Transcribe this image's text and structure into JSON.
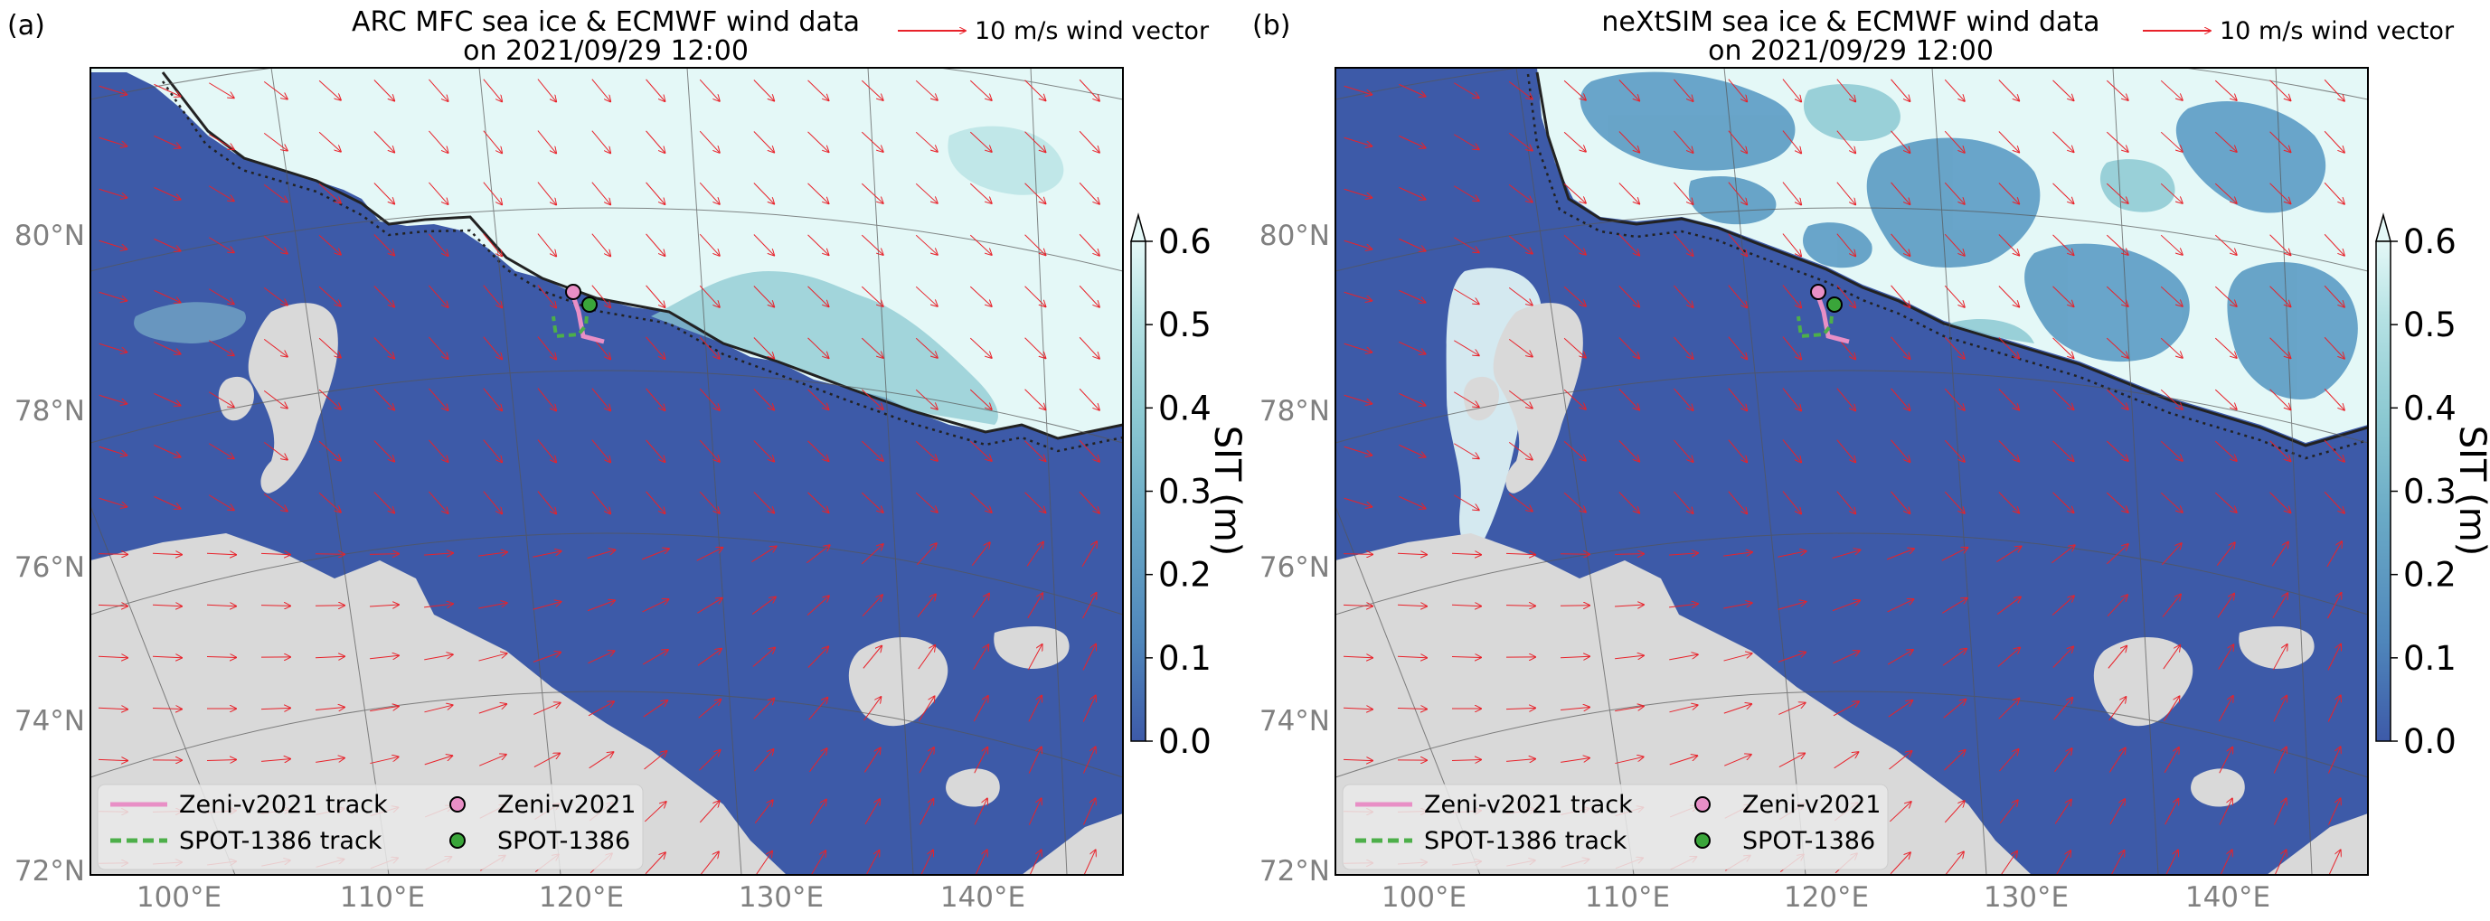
{
  "figure": {
    "panels": [
      {
        "letter": "(a)",
        "title_line1": "ARC MFC sea ice & ECMWF wind data",
        "title_line2": "on 2021/09/29 12:00",
        "wind_key": "10 m/s wind vector"
      },
      {
        "letter": "(b)",
        "title_line1": "neXtSIM sea ice & ECMWF wind data",
        "title_line2": "on 2021/09/29 12:00",
        "wind_key": "10 m/s wind vector"
      }
    ],
    "lat_labels": [
      "80°N",
      "78°N",
      "76°N",
      "74°N",
      "72°N"
    ],
    "lon_labels": [
      "100°E",
      "110°E",
      "120°E",
      "130°E",
      "140°E"
    ],
    "colorbar": {
      "label": "SIT (m)",
      "ticks": [
        "0.0",
        "0.1",
        "0.2",
        "0.3",
        "0.4",
        "0.5",
        "0.6"
      ],
      "min": 0.0,
      "max": 0.6,
      "colors": [
        "#3d5aa8",
        "#4f86bb",
        "#6aaac6",
        "#8cc9d2",
        "#b6e2e4",
        "#e4f8f7"
      ]
    },
    "legend": [
      {
        "label": "Zeni-v2021 track",
        "kind": "line",
        "color": "#e88fc6"
      },
      {
        "label": "SPOT-1386 track",
        "kind": "dashed",
        "color": "#4daf4a"
      },
      {
        "label": "Zeni-v2021",
        "kind": "marker",
        "color": "#e88fc6"
      },
      {
        "label": "SPOT-1386",
        "kind": "marker",
        "color": "#3aa53a"
      }
    ],
    "colors": {
      "ocean": "#3d5aa8",
      "land": "#d9d9d9",
      "ice_high": "#e4f8f7",
      "wind": "#e8222a",
      "grid": "#555555",
      "tick_label": "#808080"
    }
  },
  "chart_data": [
    {
      "type": "heatmap",
      "title": "ARC MFC sea ice & ECMWF wind data on 2021/09/29 12:00",
      "variable": "SIT (m)",
      "vmin": 0.0,
      "vmax": 0.6,
      "lat_ticks": [
        80,
        78,
        76,
        74,
        72
      ],
      "lon_ticks": [
        100,
        110,
        120,
        130,
        140
      ],
      "wind_reference": "10 m/s wind vector",
      "buoys": [
        "Zeni-v2021",
        "SPOT-1386"
      ]
    },
    {
      "type": "heatmap",
      "title": "neXtSIM sea ice & ECMWF wind data on 2021/09/29 12:00",
      "variable": "SIT (m)",
      "vmin": 0.0,
      "vmax": 0.6,
      "lat_ticks": [
        80,
        78,
        76,
        74,
        72
      ],
      "lon_ticks": [
        100,
        110,
        120,
        130,
        140
      ],
      "wind_reference": "10 m/s wind vector",
      "buoys": [
        "Zeni-v2021",
        "SPOT-1386"
      ]
    }
  ]
}
